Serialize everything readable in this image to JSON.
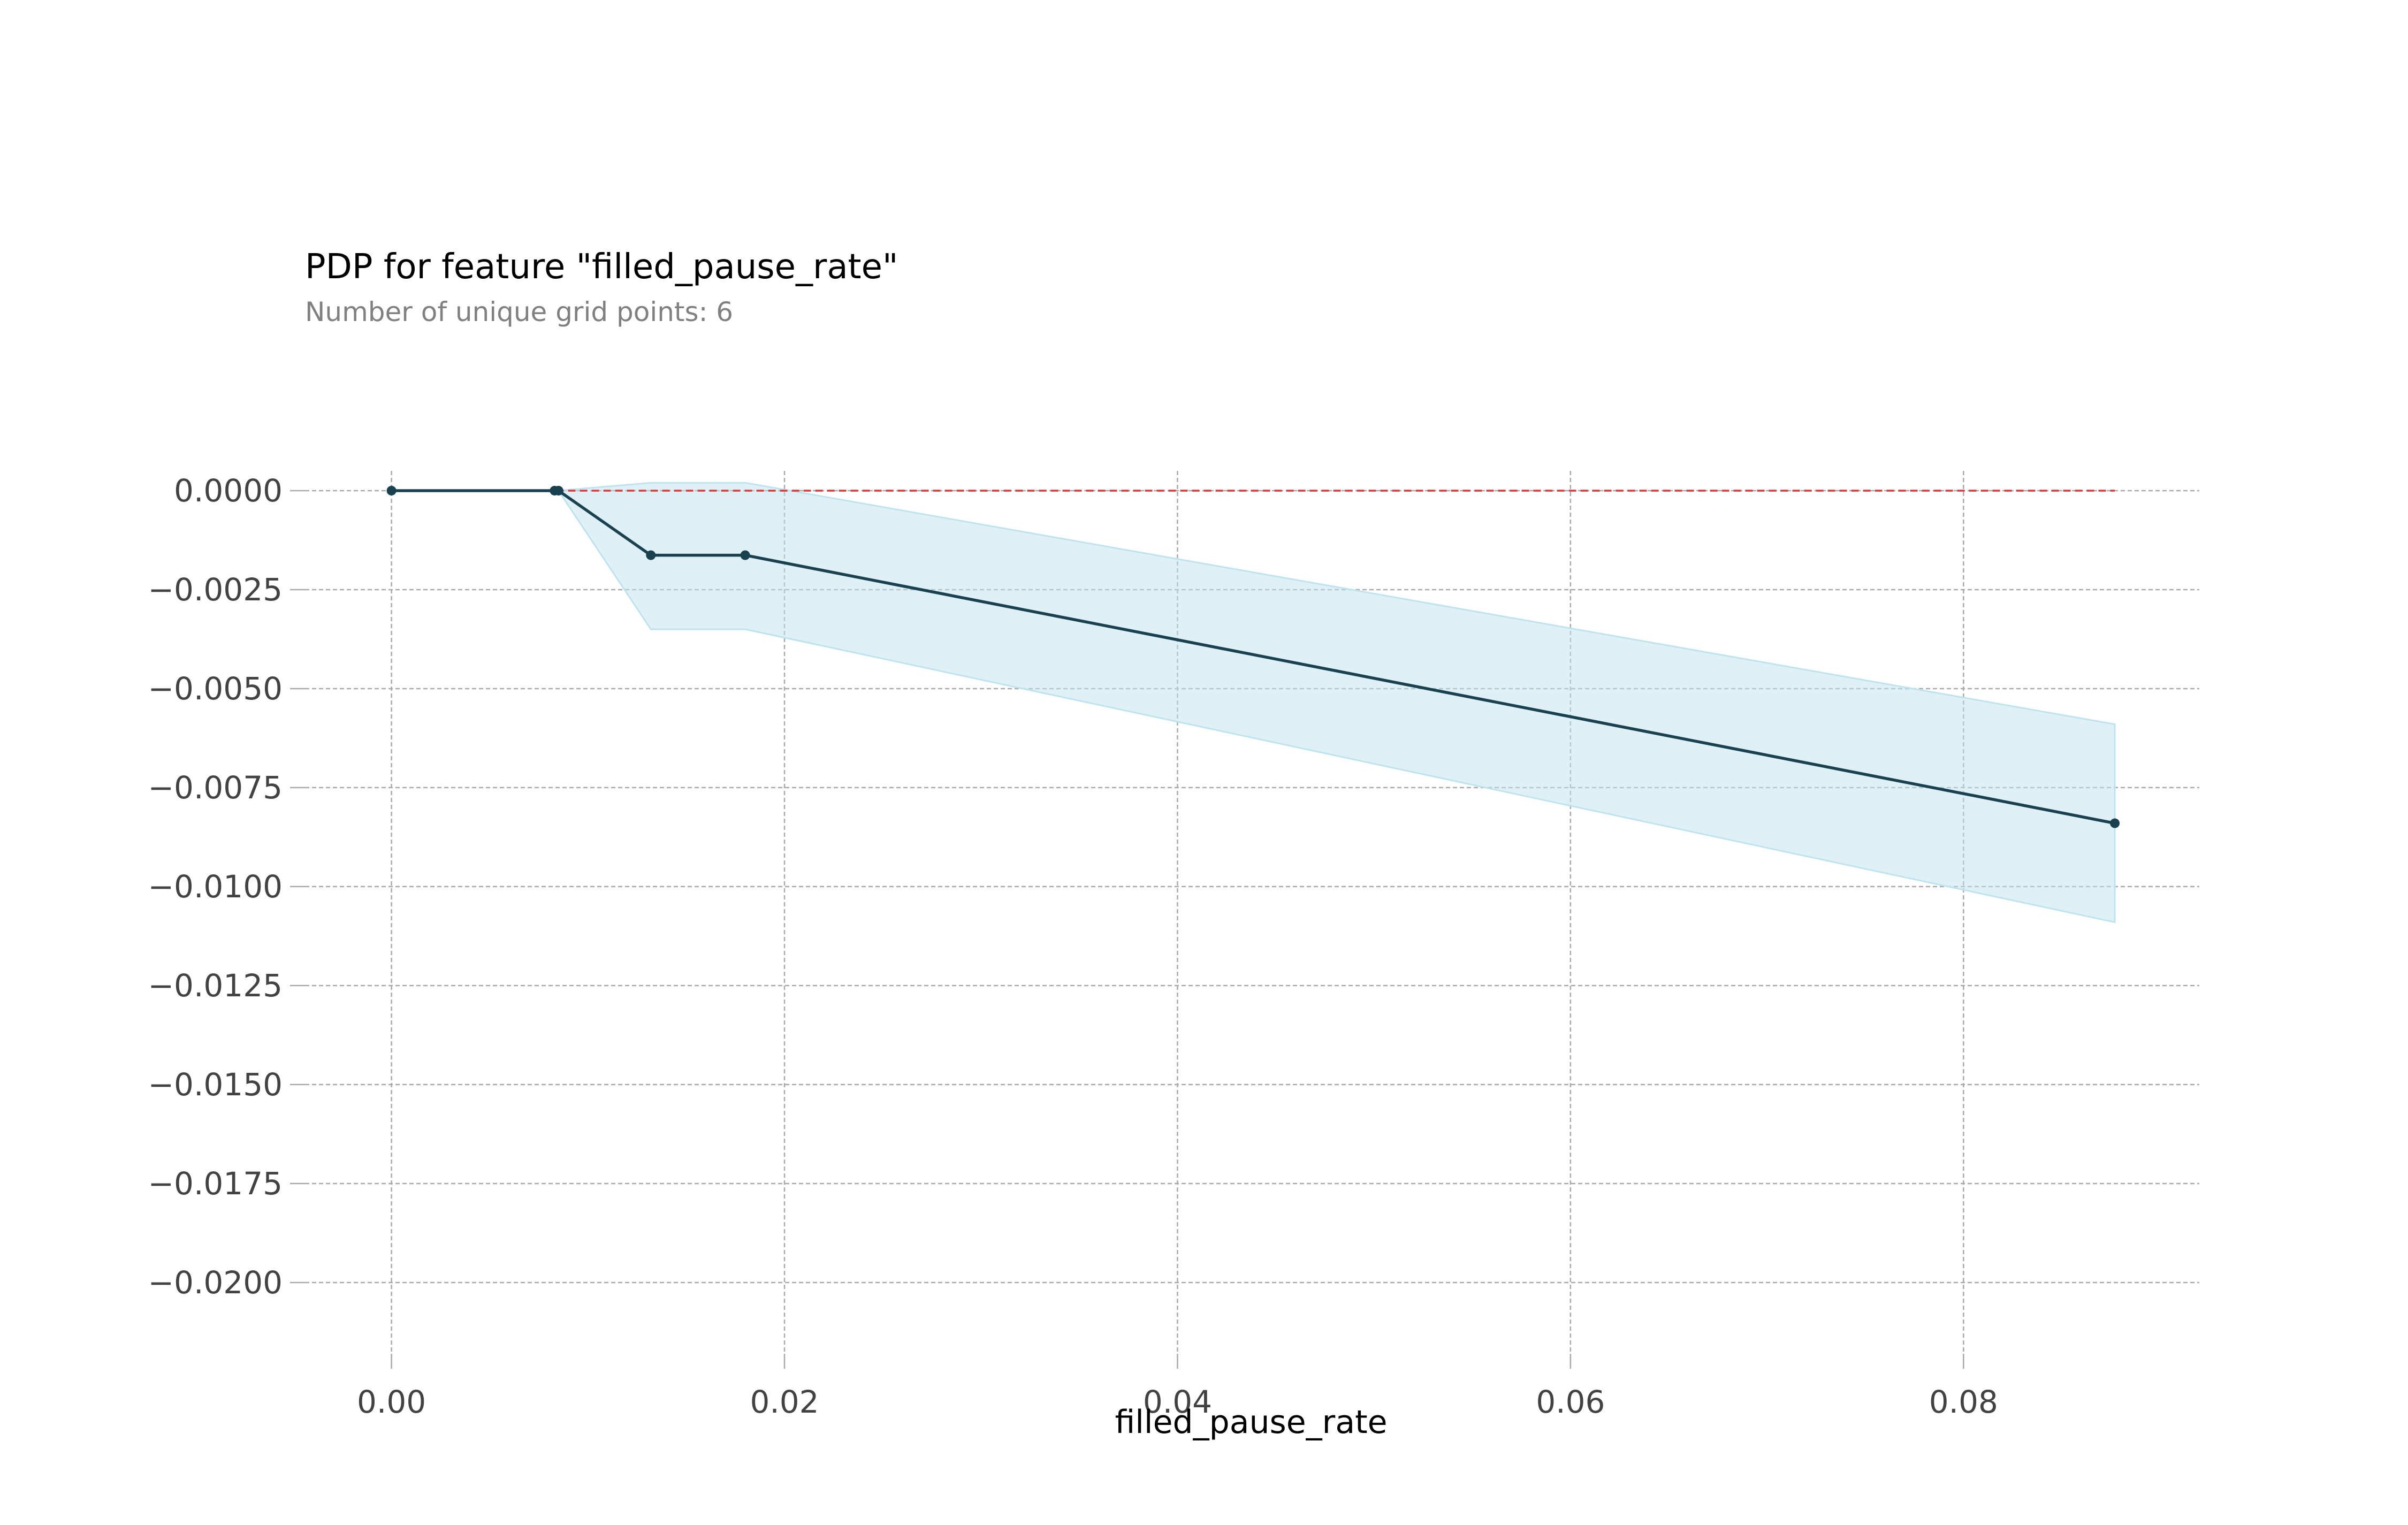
{
  "chart_data": {
    "type": "line",
    "title": "PDP for feature \"filled_pause_rate\"",
    "subtitle": "Number of unique grid points: 6",
    "xlabel": "filled_pause_rate",
    "ylabel": "",
    "xlim": [
      -0.0044,
      0.092
    ],
    "ylim": [
      -0.0218,
      0.0005
    ],
    "x_ticks": [
      0.0,
      0.02,
      0.04,
      0.06,
      0.08
    ],
    "x_tick_labels": [
      "0.00",
      "0.02",
      "0.04",
      "0.06",
      "0.08"
    ],
    "y_ticks": [
      0.0,
      -0.0025,
      -0.005,
      -0.0075,
      -0.01,
      -0.0125,
      -0.015,
      -0.0175,
      -0.02
    ],
    "y_tick_labels": [
      "0.0000",
      "−0.0025",
      "−0.0050",
      "−0.0075",
      "−0.0100",
      "−0.0125",
      "−0.0150",
      "−0.0175",
      "−0.0200"
    ],
    "grid": true,
    "x": [
      0.0,
      0.0083,
      0.0085,
      0.0132,
      0.018,
      0.0877
    ],
    "series": [
      {
        "values": [
          0.0,
          0.0,
          0.0,
          -0.00163,
          -0.00163,
          -0.0084
        ],
        "upper": [
          0.0,
          0.0,
          0.0,
          0.0002,
          0.0002,
          -0.0059
        ],
        "lower": [
          0.0,
          0.0,
          0.0,
          -0.0035,
          -0.0035,
          -0.0109
        ]
      }
    ],
    "baseline": 0.0,
    "colors": {
      "line": "#1a4150",
      "band": "#bfe3ef",
      "baseline": "#d93a3a",
      "grid": "#aaaaaa"
    }
  }
}
